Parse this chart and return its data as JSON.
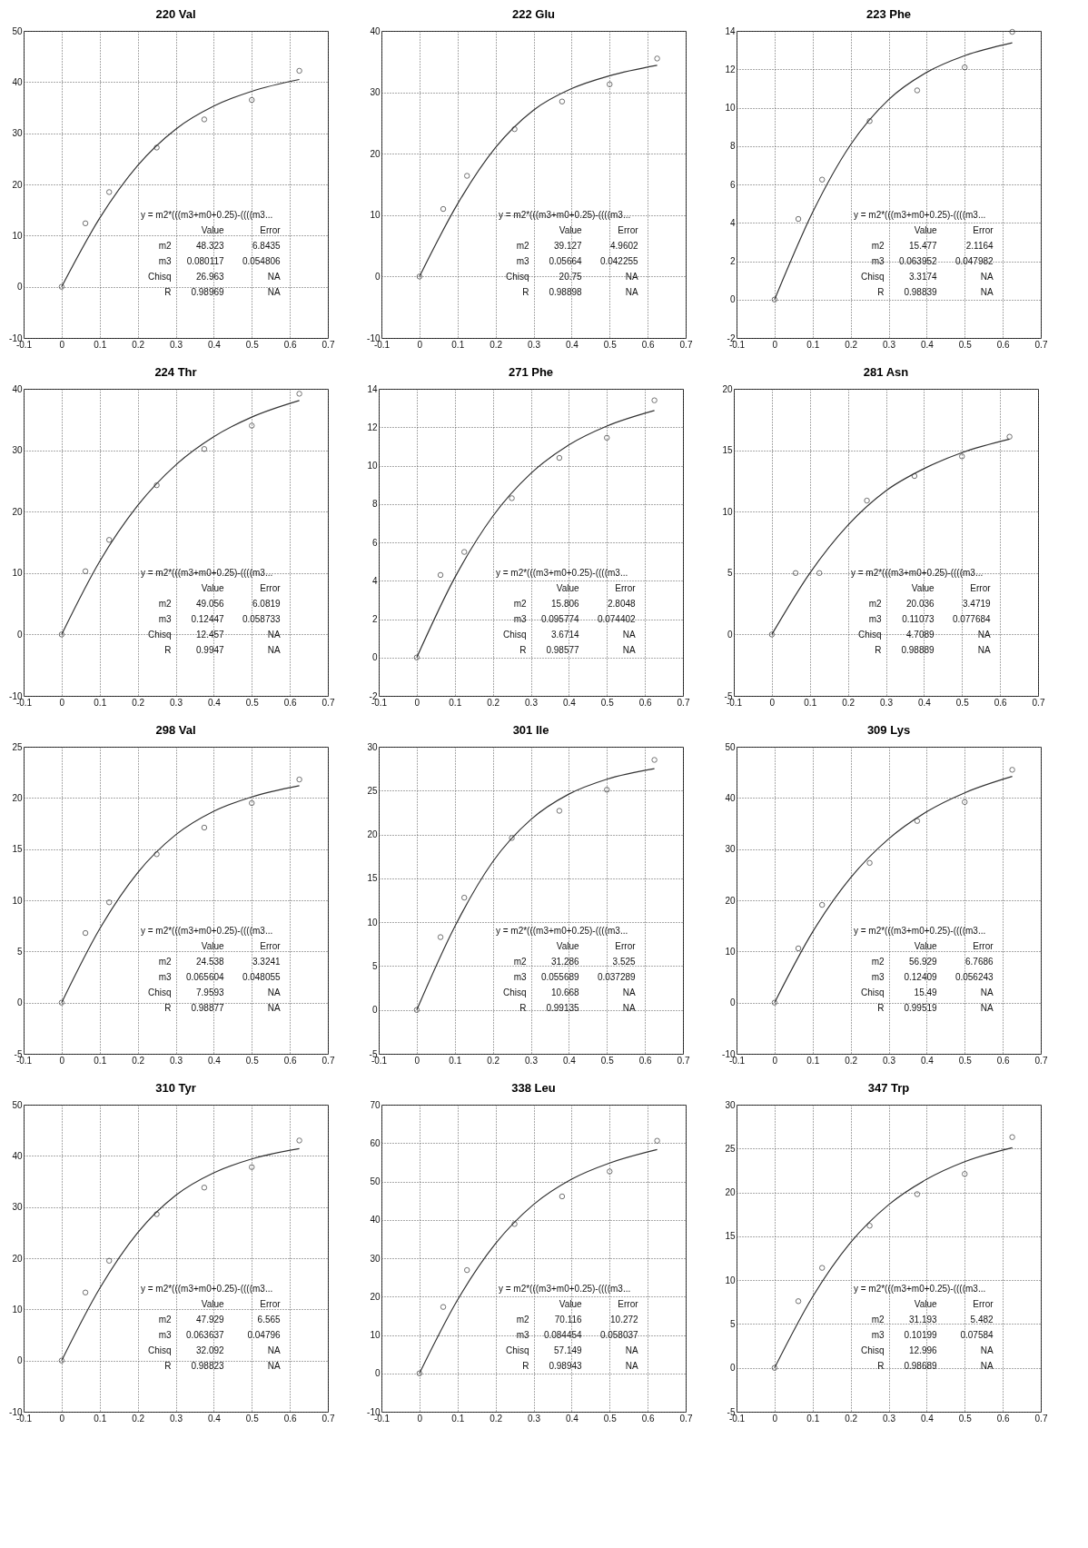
{
  "chart_data": [
    {
      "type": "scatter",
      "title": "220 Val",
      "xlim": [
        -0.1,
        0.7
      ],
      "xticks": [
        -0.1,
        0,
        0.1,
        0.2,
        0.3,
        0.4,
        0.5,
        0.6,
        0.7
      ],
      "ylim": [
        -10,
        50
      ],
      "yticks": [
        -10,
        0,
        10,
        20,
        30,
        40,
        50
      ],
      "grid": true,
      "marker": "circle",
      "line_style": "solid",
      "series": [
        {
          "type": "scatter",
          "color": "#333333",
          "x": [
            0,
            0.0625,
            0.125,
            0.25,
            0.375,
            0.5,
            0.625
          ],
          "values": [
            0,
            12.4,
            18.5,
            27.2,
            32.7,
            36.5,
            42.2
          ]
        },
        {
          "type": "line",
          "color": "#333333",
          "x": [
            0,
            0.1,
            0.2,
            0.3,
            0.4,
            0.5,
            0.625
          ],
          "values": [
            0,
            13.4,
            23.7,
            30.8,
            35.3,
            38.2,
            40.5
          ],
          "marker": "none"
        }
      ],
      "annotations": [
        "y = m2*(((m3+m0+0.25)-((((m3...",
        "Value",
        "Error",
        "m2",
        "48.323",
        "6.8435",
        "m3",
        "0.080117",
        "0.054806",
        "Chisq",
        "26.963",
        "NA",
        "R",
        "0.98969",
        "NA"
      ]
    },
    {
      "type": "scatter",
      "title": "222 Glu",
      "xlim": [
        -0.1,
        0.7
      ],
      "xticks": [
        -0.1,
        0,
        0.1,
        0.2,
        0.3,
        0.4,
        0.5,
        0.6,
        0.7
      ],
      "ylim": [
        -10,
        40
      ],
      "yticks": [
        -10,
        0,
        10,
        20,
        30,
        40
      ],
      "grid": true,
      "marker": "circle",
      "line_style": "solid",
      "series": [
        {
          "type": "scatter",
          "color": "#333333",
          "x": [
            0,
            0.0625,
            0.125,
            0.25,
            0.375,
            0.5,
            0.625
          ],
          "values": [
            0,
            11.0,
            16.4,
            24.0,
            28.5,
            31.3,
            35.5
          ]
        },
        {
          "type": "line",
          "color": "#333333",
          "x": [
            0,
            0.1,
            0.2,
            0.3,
            0.4,
            0.5,
            0.625
          ],
          "values": [
            0,
            11.8,
            21.0,
            27.1,
            30.6,
            32.7,
            34.4
          ],
          "marker": "none"
        }
      ],
      "annotations": [
        "y = m2*(((m3+m0+0.25)-((((m3...",
        "Value",
        "Error",
        "m2",
        "39.127",
        "4.9602",
        "m3",
        "0.05664",
        "0.042255",
        "Chisq",
        "20.75",
        "NA",
        "R",
        "0.98898",
        "NA"
      ]
    },
    {
      "type": "scatter",
      "title": "223 Phe",
      "xlim": [
        -0.1,
        0.7
      ],
      "xticks": [
        -0.1,
        0,
        0.1,
        0.2,
        0.3,
        0.4,
        0.5,
        0.6,
        0.7
      ],
      "ylim": [
        -2,
        14
      ],
      "yticks": [
        -2,
        0,
        2,
        4,
        6,
        8,
        10,
        12,
        14
      ],
      "grid": true,
      "marker": "circle",
      "line_style": "solid",
      "series": [
        {
          "type": "scatter",
          "color": "#333333",
          "x": [
            0,
            0.0625,
            0.125,
            0.25,
            0.375,
            0.5,
            0.625
          ],
          "values": [
            0,
            4.2,
            6.25,
            9.3,
            10.9,
            12.1,
            13.95
          ]
        },
        {
          "type": "line",
          "color": "#333333",
          "x": [
            0,
            0.1,
            0.2,
            0.3,
            0.4,
            0.5,
            0.625
          ],
          "values": [
            0,
            4.54,
            8.07,
            10.42,
            11.84,
            12.71,
            13.38
          ],
          "marker": "none"
        }
      ],
      "annotations": [
        "y = m2*(((m3+m0+0.25)-((((m3...",
        "Value",
        "Error",
        "m2",
        "15.477",
        "2.1164",
        "m3",
        "0.063952",
        "0.047982",
        "Chisq",
        "3.3174",
        "NA",
        "R",
        "0.98839",
        "NA"
      ]
    },
    {
      "type": "scatter",
      "title": "224 Thr",
      "xlim": [
        -0.1,
        0.7
      ],
      "xticks": [
        -0.1,
        0,
        0.1,
        0.2,
        0.3,
        0.4,
        0.5,
        0.6,
        0.7
      ],
      "ylim": [
        -10,
        40
      ],
      "yticks": [
        -10,
        0,
        10,
        20,
        30,
        40
      ],
      "grid": true,
      "marker": "circle",
      "line_style": "solid",
      "series": [
        {
          "type": "scatter",
          "color": "#333333",
          "x": [
            0,
            0.0625,
            0.125,
            0.25,
            0.375,
            0.5,
            0.625
          ],
          "values": [
            0,
            10.3,
            15.4,
            24.3,
            30.2,
            34.0,
            39.2
          ]
        },
        {
          "type": "line",
          "color": "#333333",
          "x": [
            0,
            0.1,
            0.2,
            0.3,
            0.4,
            0.5,
            0.625
          ],
          "values": [
            0,
            11.9,
            21.0,
            27.6,
            32.2,
            35.4,
            38.1
          ],
          "marker": "none"
        }
      ],
      "annotations": [
        "y = m2*(((m3+m0+0.25)-((((m3...",
        "Value",
        "Error",
        "m2",
        "49.056",
        "6.0819",
        "m3",
        "0.12447",
        "0.058733",
        "Chisq",
        "12.457",
        "NA",
        "R",
        "0.9947",
        "NA"
      ]
    },
    {
      "type": "scatter",
      "title": "271 Phe",
      "xlim": [
        -0.1,
        0.7
      ],
      "xticks": [
        -0.1,
        0,
        0.1,
        0.2,
        0.3,
        0.4,
        0.5,
        0.6,
        0.7
      ],
      "ylim": [
        -2,
        14
      ],
      "yticks": [
        -2,
        0,
        2,
        4,
        6,
        8,
        10,
        12,
        14
      ],
      "grid": true,
      "marker": "circle",
      "line_style": "solid",
      "series": [
        {
          "type": "scatter",
          "color": "#333333",
          "x": [
            0,
            0.0625,
            0.125,
            0.25,
            0.375,
            0.5,
            0.625
          ],
          "values": [
            0,
            4.3,
            5.5,
            8.3,
            10.4,
            11.45,
            13.4
          ]
        },
        {
          "type": "line",
          "color": "#333333",
          "x": [
            0,
            0.1,
            0.2,
            0.3,
            0.4,
            0.5,
            0.625
          ],
          "values": [
            0,
            4.16,
            7.36,
            9.59,
            11.08,
            12.06,
            12.87
          ],
          "marker": "none"
        }
      ],
      "annotations": [
        "y = m2*(((m3+m0+0.25)-((((m3...",
        "Value",
        "Error",
        "m2",
        "15.806",
        "2.8048",
        "m3",
        "0.095774",
        "0.074402",
        "Chisq",
        "3.6714",
        "NA",
        "R",
        "0.98577",
        "NA"
      ]
    },
    {
      "type": "scatter",
      "title": "281 Asn",
      "xlim": [
        -0.1,
        0.7
      ],
      "xticks": [
        -0.1,
        0,
        0.1,
        0.2,
        0.3,
        0.4,
        0.5,
        0.6,
        0.7
      ],
      "ylim": [
        -5,
        20
      ],
      "yticks": [
        -5,
        0,
        5,
        10,
        15,
        20
      ],
      "grid": true,
      "marker": "circle",
      "line_style": "solid",
      "series": [
        {
          "type": "scatter",
          "color": "#333333",
          "x": [
            0,
            0.0625,
            0.125,
            0.25,
            0.375,
            0.5,
            0.625
          ],
          "values": [
            0,
            5.0,
            5.0,
            10.9,
            12.9,
            14.5,
            16.1
          ]
        },
        {
          "type": "line",
          "color": "#333333",
          "x": [
            0,
            0.1,
            0.2,
            0.3,
            0.4,
            0.5,
            0.625
          ],
          "values": [
            0,
            5.0,
            8.9,
            11.7,
            13.5,
            14.8,
            15.9
          ],
          "marker": "none"
        }
      ],
      "annotations": [
        "y = m2*(((m3+m0+0.25)-((((m3...",
        "Value",
        "Error",
        "m2",
        "20.036",
        "3.4719",
        "m3",
        "0.11073",
        "0.077684",
        "Chisq",
        "4.7089",
        "NA",
        "R",
        "0.98889",
        "NA"
      ]
    },
    {
      "type": "scatter",
      "title": "298 Val",
      "xlim": [
        -0.1,
        0.7
      ],
      "xticks": [
        -0.1,
        0,
        0.1,
        0.2,
        0.3,
        0.4,
        0.5,
        0.6,
        0.7
      ],
      "ylim": [
        -5,
        25
      ],
      "yticks": [
        -5,
        0,
        5,
        10,
        15,
        20,
        25
      ],
      "grid": true,
      "marker": "circle",
      "line_style": "solid",
      "series": [
        {
          "type": "scatter",
          "color": "#333333",
          "x": [
            0,
            0.0625,
            0.125,
            0.25,
            0.375,
            0.5,
            0.625
          ],
          "values": [
            0,
            6.8,
            9.8,
            14.5,
            17.1,
            19.5,
            21.8
          ]
        },
        {
          "type": "line",
          "color": "#333333",
          "x": [
            0,
            0.1,
            0.2,
            0.3,
            0.4,
            0.5,
            0.625
          ],
          "values": [
            0,
            7.2,
            12.7,
            16.4,
            18.7,
            20.1,
            21.2
          ],
          "marker": "none"
        }
      ],
      "annotations": [
        "y = m2*(((m3+m0+0.25)-((((m3...",
        "Value",
        "Error",
        "m2",
        "24.538",
        "3.3241",
        "m3",
        "0.065604",
        "0.048055",
        "Chisq",
        "7.9593",
        "NA",
        "R",
        "0.98877",
        "NA"
      ]
    },
    {
      "type": "scatter",
      "title": "301 Ile",
      "xlim": [
        -0.1,
        0.7
      ],
      "xticks": [
        -0.1,
        0,
        0.1,
        0.2,
        0.3,
        0.4,
        0.5,
        0.6,
        0.7
      ],
      "ylim": [
        -5,
        30
      ],
      "yticks": [
        -5,
        0,
        5,
        10,
        15,
        20,
        25,
        30
      ],
      "grid": true,
      "marker": "circle",
      "line_style": "solid",
      "series": [
        {
          "type": "scatter",
          "color": "#333333",
          "x": [
            0,
            0.0625,
            0.125,
            0.25,
            0.375,
            0.5,
            0.625
          ],
          "values": [
            0,
            8.3,
            12.8,
            19.6,
            22.7,
            25.1,
            28.5
          ]
        },
        {
          "type": "line",
          "color": "#333333",
          "x": [
            0,
            0.1,
            0.2,
            0.3,
            0.4,
            0.5,
            0.625
          ],
          "values": [
            0,
            9.5,
            16.9,
            21.7,
            24.6,
            26.3,
            27.5
          ],
          "marker": "none"
        }
      ],
      "annotations": [
        "y = m2*(((m3+m0+0.25)-((((m3...",
        "Value",
        "Error",
        "m2",
        "31.286",
        "3.525",
        "m3",
        "0.055689",
        "0.037289",
        "Chisq",
        "10.668",
        "NA",
        "R",
        "0.99135",
        "NA"
      ]
    },
    {
      "type": "scatter",
      "title": "309 Lys",
      "xlim": [
        -0.1,
        0.7
      ],
      "xticks": [
        -0.1,
        0,
        0.1,
        0.2,
        0.3,
        0.4,
        0.5,
        0.6,
        0.7
      ],
      "ylim": [
        -10,
        50
      ],
      "yticks": [
        -10,
        0,
        10,
        20,
        30,
        40,
        50
      ],
      "grid": true,
      "marker": "circle",
      "line_style": "solid",
      "series": [
        {
          "type": "scatter",
          "color": "#333333",
          "x": [
            0,
            0.0625,
            0.125,
            0.25,
            0.375,
            0.5,
            0.625
          ],
          "values": [
            0,
            10.6,
            19.1,
            27.3,
            35.5,
            39.2,
            45.5
          ]
        },
        {
          "type": "line",
          "color": "#333333",
          "x": [
            0,
            0.1,
            0.2,
            0.3,
            0.4,
            0.5,
            0.625
          ],
          "values": [
            0,
            13.8,
            24.4,
            32.0,
            37.3,
            41.0,
            44.2
          ],
          "marker": "none"
        }
      ],
      "annotations": [
        "y = m2*(((m3+m0+0.25)-((((m3...",
        "Value",
        "Error",
        "m2",
        "56.929",
        "6.7686",
        "m3",
        "0.12409",
        "0.056243",
        "Chisq",
        "15.49",
        "NA",
        "R",
        "0.99519",
        "NA"
      ]
    },
    {
      "type": "scatter",
      "title": "310 Tyr",
      "xlim": [
        -0.1,
        0.7
      ],
      "xticks": [
        -0.1,
        0,
        0.1,
        0.2,
        0.3,
        0.4,
        0.5,
        0.6,
        0.7
      ],
      "ylim": [
        -10,
        50
      ],
      "yticks": [
        -10,
        0,
        10,
        20,
        30,
        40,
        50
      ],
      "grid": true,
      "marker": "circle",
      "line_style": "solid",
      "series": [
        {
          "type": "scatter",
          "color": "#333333",
          "x": [
            0,
            0.0625,
            0.125,
            0.25,
            0.375,
            0.5,
            0.625
          ],
          "values": [
            0,
            13.3,
            19.5,
            28.6,
            33.8,
            37.8,
            43.0
          ]
        },
        {
          "type": "line",
          "color": "#333333",
          "x": [
            0,
            0.1,
            0.2,
            0.3,
            0.4,
            0.5,
            0.625
          ],
          "values": [
            0,
            14.1,
            25.0,
            32.3,
            36.7,
            39.4,
            41.4
          ],
          "marker": "none"
        }
      ],
      "annotations": [
        "y = m2*(((m3+m0+0.25)-((((m3...",
        "Value",
        "Error",
        "m2",
        "47.929",
        "6.565",
        "m3",
        "0.063637",
        "0.04796",
        "Chisq",
        "32.092",
        "NA",
        "R",
        "0.98823",
        "NA"
      ]
    },
    {
      "type": "scatter",
      "title": "338 Leu",
      "xlim": [
        -0.1,
        0.7
      ],
      "xticks": [
        -0.1,
        0,
        0.1,
        0.2,
        0.3,
        0.4,
        0.5,
        0.6,
        0.7
      ],
      "ylim": [
        -10,
        70
      ],
      "yticks": [
        -10,
        0,
        10,
        20,
        30,
        40,
        50,
        60,
        70
      ],
      "grid": true,
      "marker": "circle",
      "line_style": "solid",
      "series": [
        {
          "type": "scatter",
          "color": "#333333",
          "x": [
            0,
            0.0625,
            0.125,
            0.25,
            0.375,
            0.5,
            0.625
          ],
          "values": [
            0,
            17.3,
            26.9,
            38.9,
            46.1,
            52.6,
            60.6
          ]
        },
        {
          "type": "line",
          "color": "#333333",
          "x": [
            0,
            0.1,
            0.2,
            0.3,
            0.4,
            0.5,
            0.625
          ],
          "values": [
            0,
            19.1,
            33.8,
            44.0,
            50.6,
            54.8,
            58.3
          ],
          "marker": "none"
        }
      ],
      "annotations": [
        "y = m2*(((m3+m0+0.25)-((((m3...",
        "Value",
        "Error",
        "m2",
        "70.116",
        "10.272",
        "m3",
        "0.084454",
        "0.058037",
        "Chisq",
        "57.149",
        "NA",
        "R",
        "0.98943",
        "NA"
      ]
    },
    {
      "type": "scatter",
      "title": "347 Trp",
      "xlim": [
        -0.1,
        0.7
      ],
      "xticks": [
        -0.1,
        0,
        0.1,
        0.2,
        0.3,
        0.4,
        0.5,
        0.6,
        0.7
      ],
      "ylim": [
        -5,
        30
      ],
      "yticks": [
        -5,
        0,
        5,
        10,
        15,
        20,
        25,
        30
      ],
      "grid": true,
      "marker": "circle",
      "line_style": "solid",
      "series": [
        {
          "type": "scatter",
          "color": "#333333",
          "x": [
            0,
            0.0625,
            0.125,
            0.25,
            0.375,
            0.5,
            0.625
          ],
          "values": [
            0,
            7.6,
            11.4,
            16.2,
            19.8,
            22.1,
            26.3
          ]
        },
        {
          "type": "line",
          "color": "#333333",
          "x": [
            0,
            0.1,
            0.2,
            0.3,
            0.4,
            0.5,
            0.625
          ],
          "values": [
            0,
            8.1,
            14.3,
            18.6,
            21.5,
            23.5,
            25.1
          ],
          "marker": "none"
        }
      ],
      "annotations": [
        "y = m2*(((m3+m0+0.25)-((((m3...",
        "Value",
        "Error",
        "m2",
        "31.193",
        "5.482",
        "m3",
        "0.10199",
        "0.07584",
        "Chisq",
        "12.996",
        "NA",
        "R",
        "0.98689",
        "NA"
      ]
    }
  ]
}
